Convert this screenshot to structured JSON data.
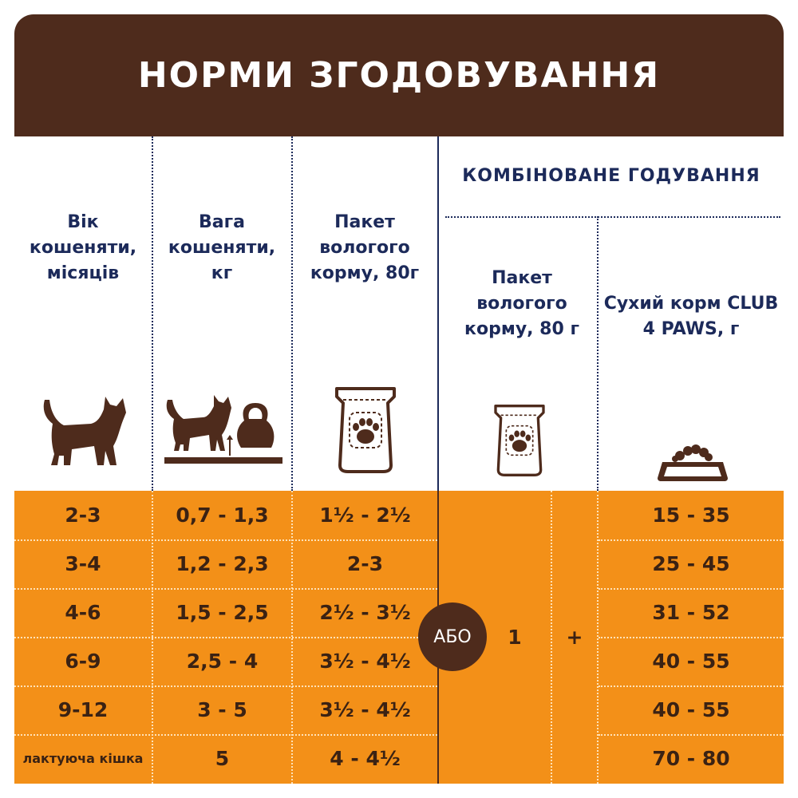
{
  "title": "НОРМИ ЗГОДОВУВАННЯ",
  "headers": {
    "age": "Вік кошеняти, місяців",
    "weight": "Вага кошеняти, кг",
    "wet": "Пакет вологого корму, 80г",
    "combined": "КОМБІНОВАНЕ ГОДУВАННЯ",
    "combined_wet": "Пакет вологого корму, 80 г",
    "combined_dry": "Сухий корм CLUB 4 PAWS, г"
  },
  "icons": {
    "age": "kitten-icon",
    "weight": "kitten-weight-icon",
    "wet": "food-pouch-icon",
    "combined_wet": "food-pouch-icon",
    "combined_dry": "food-bowl-icon"
  },
  "rows": [
    {
      "age": "2-3",
      "weight": "0,7 - 1,3",
      "wet": "1½ - 2½",
      "dry": "15 - 35"
    },
    {
      "age": "3-4",
      "weight": "1,2 - 2,3",
      "wet": "2-3",
      "dry": "25 - 45"
    },
    {
      "age": "4-6",
      "weight": "1,5 - 2,5",
      "wet": "2½ - 3½",
      "dry": "31 - 52"
    },
    {
      "age": "6-9",
      "weight": "2,5 - 4",
      "wet": "3½ - 4½",
      "dry": "40 - 55"
    },
    {
      "age": "9-12",
      "weight": "3 - 5",
      "wet": "3½ - 4½",
      "dry": "40 - 55"
    },
    {
      "age": "лактуюча кішка",
      "weight": "5",
      "wet": "4 - 4½",
      "dry": "70 - 80"
    }
  ],
  "or_label": "АБО",
  "combined_wet_value": "1",
  "plus_sign": "+",
  "colors": {
    "brown": "#4e2b1c",
    "orange": "#f39018",
    "navy": "#1c2a5a"
  }
}
